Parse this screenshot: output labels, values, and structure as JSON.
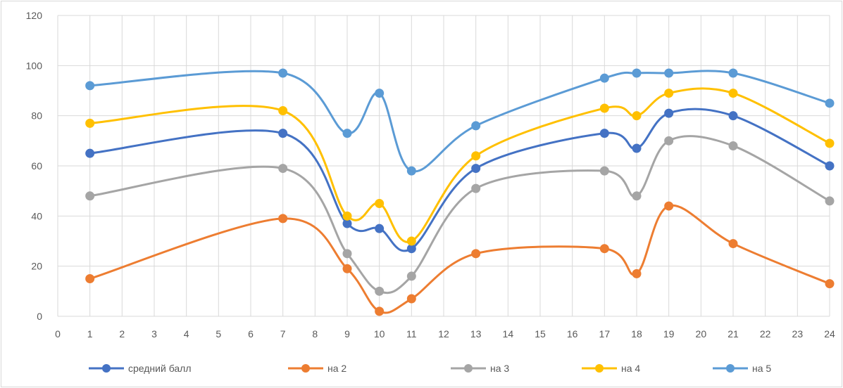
{
  "chart_data": {
    "type": "line",
    "title": "",
    "xlabel": "",
    "ylabel": "",
    "xlim": [
      0,
      24
    ],
    "ylim": [
      0,
      120
    ],
    "x_ticks": [
      0,
      1,
      2,
      3,
      4,
      5,
      6,
      7,
      8,
      9,
      10,
      11,
      12,
      13,
      14,
      15,
      16,
      17,
      18,
      19,
      20,
      21,
      22,
      23,
      24
    ],
    "y_ticks": [
      0,
      20,
      40,
      60,
      80,
      100,
      120
    ],
    "grid": true,
    "legend_position": "bottom",
    "smooth": true,
    "x": [
      1,
      7,
      9,
      10,
      11,
      13,
      17,
      18,
      19,
      21,
      24
    ],
    "series": [
      {
        "name": "средний балл",
        "color": "#4472C4",
        "values": [
          65,
          73,
          37,
          35,
          27,
          59,
          73,
          67,
          81,
          80,
          60
        ]
      },
      {
        "name": "на 2",
        "color": "#ED7D31",
        "values": [
          15,
          39,
          19,
          2,
          7,
          25,
          27,
          17,
          44,
          29,
          13
        ]
      },
      {
        "name": "на 3",
        "color": "#A5A5A5",
        "values": [
          48,
          59,
          25,
          10,
          16,
          51,
          58,
          48,
          70,
          68,
          46
        ]
      },
      {
        "name": "на 4",
        "color": "#FFC000",
        "values": [
          77,
          82,
          40,
          45,
          30,
          64,
          83,
          80,
          89,
          89,
          69
        ]
      },
      {
        "name": "на 5",
        "color": "#5B9BD5",
        "values": [
          92,
          97,
          73,
          89,
          58,
          76,
          95,
          97,
          97,
          97,
          85
        ]
      }
    ]
  }
}
